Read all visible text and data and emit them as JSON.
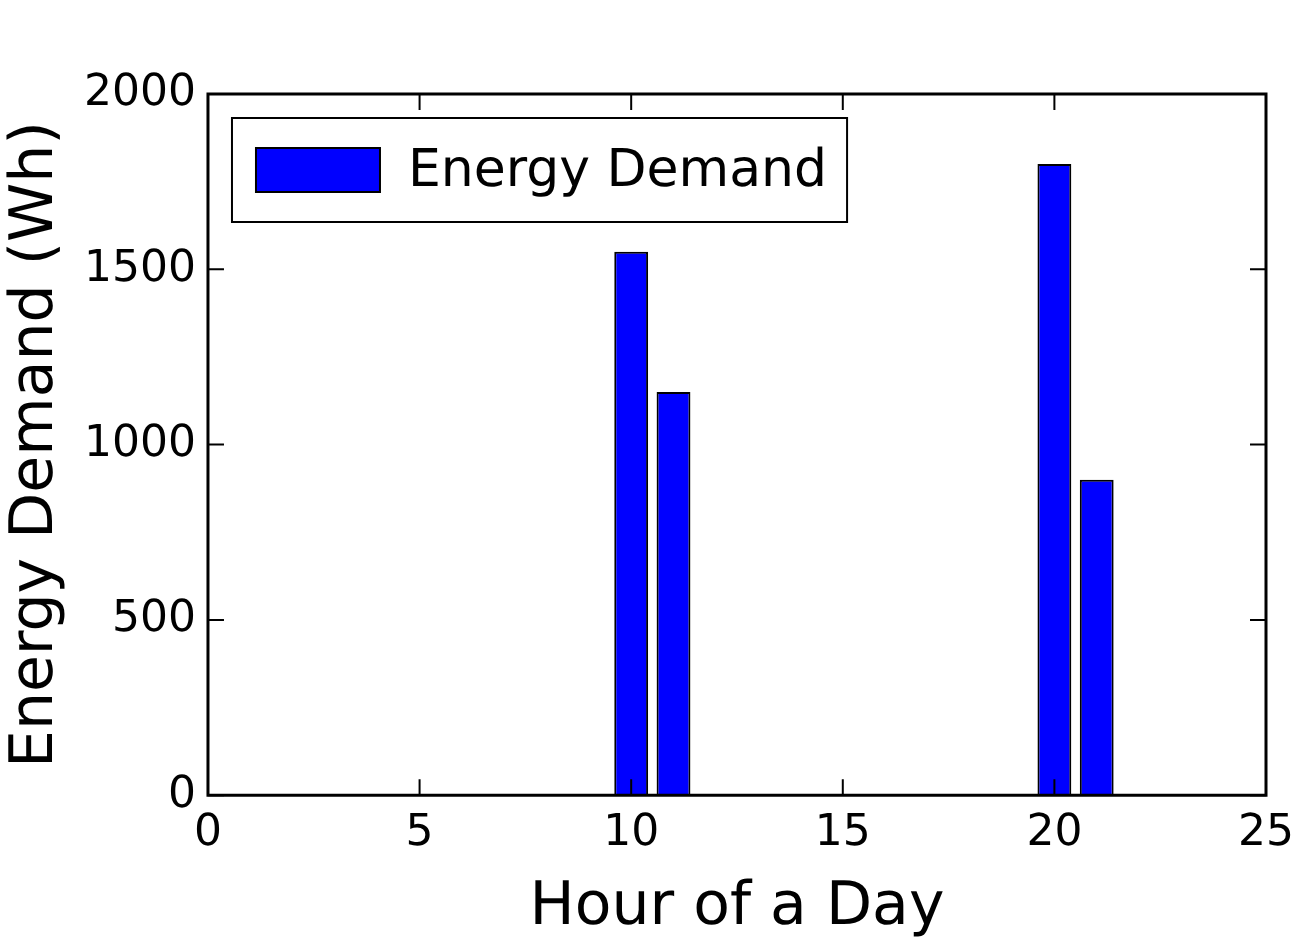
{
  "chart_data": {
    "type": "bar",
    "xlabel": "Hour of a Day",
    "ylabel": "Energy Demand (Wh)",
    "x": [
      1,
      2,
      3,
      4,
      5,
      6,
      7,
      8,
      9,
      10,
      11,
      12,
      13,
      14,
      15,
      16,
      17,
      18,
      19,
      20,
      21,
      22,
      23,
      24
    ],
    "series": [
      {
        "name": "Energy Demand",
        "color": "#0000ff",
        "values": [
          0,
          0,
          0,
          0,
          0,
          0,
          0,
          0,
          0,
          1550,
          1150,
          0,
          0,
          0,
          0,
          0,
          0,
          0,
          0,
          1800,
          900,
          0,
          0,
          0
        ]
      }
    ],
    "xlim": [
      0,
      25
    ],
    "xticks": [
      0,
      5,
      10,
      15,
      20,
      25
    ],
    "ylim": [
      0,
      2000
    ],
    "yticks": [
      0,
      500,
      1000,
      1500,
      2000
    ],
    "legend": "top left",
    "grid": false
  }
}
